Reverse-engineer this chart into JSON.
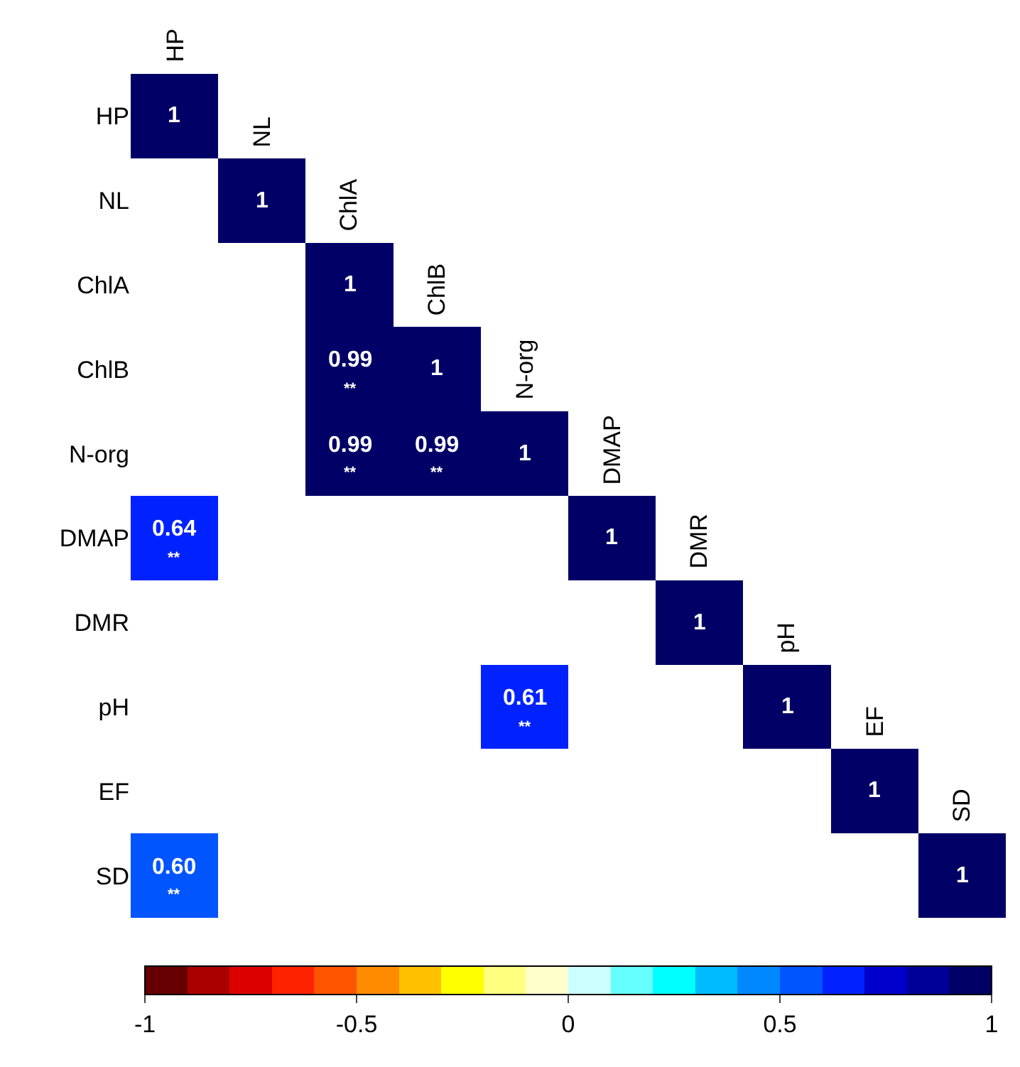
{
  "chart_data": {
    "type": "heatmap",
    "categories": [
      "HP",
      "NL",
      "ChlA",
      "ChlB",
      "N-org",
      "DMAP",
      "DMR",
      "pH",
      "EF",
      "SD"
    ],
    "y_categories": [
      "HP",
      "NL",
      "ChlA",
      "ChlB",
      "N-org",
      "DMAP",
      "DMR",
      "pH",
      "EF",
      "SD"
    ],
    "cells": [
      [
        1,
        null,
        null,
        null,
        null,
        null,
        null,
        null,
        null,
        null
      ],
      [
        null,
        1,
        null,
        null,
        null,
        null,
        null,
        null,
        null,
        null
      ],
      [
        null,
        null,
        1,
        null,
        null,
        null,
        null,
        null,
        null,
        null
      ],
      [
        null,
        null,
        0.99,
        1,
        null,
        null,
        null,
        null,
        null,
        null
      ],
      [
        null,
        null,
        0.99,
        0.99,
        1,
        null,
        null,
        null,
        null,
        null
      ],
      [
        0.64,
        null,
        null,
        null,
        null,
        1,
        null,
        null,
        null,
        null
      ],
      [
        null,
        null,
        null,
        null,
        null,
        null,
        1,
        null,
        null,
        null
      ],
      [
        null,
        null,
        null,
        null,
        0.61,
        null,
        null,
        1,
        null,
        null
      ],
      [
        null,
        null,
        null,
        null,
        null,
        null,
        null,
        null,
        1,
        null
      ],
      [
        0.6,
        null,
        null,
        null,
        null,
        null,
        null,
        null,
        null,
        1
      ]
    ],
    "cell_labels": [
      [
        "1",
        null,
        null,
        null,
        null,
        null,
        null,
        null,
        null,
        null
      ],
      [
        null,
        "1",
        null,
        null,
        null,
        null,
        null,
        null,
        null,
        null
      ],
      [
        null,
        null,
        "1",
        null,
        null,
        null,
        null,
        null,
        null,
        null
      ],
      [
        null,
        null,
        "0.99\n**",
        "1",
        null,
        null,
        null,
        null,
        null,
        null
      ],
      [
        null,
        null,
        "0.99\n**",
        "0.99\n**",
        "1",
        null,
        null,
        null,
        null,
        null
      ],
      [
        "0.64\n**",
        null,
        null,
        null,
        null,
        "1",
        null,
        null,
        null,
        null
      ],
      [
        null,
        null,
        null,
        null,
        null,
        null,
        "1",
        null,
        null,
        null
      ],
      [
        null,
        null,
        null,
        null,
        "0.61\n**",
        null,
        null,
        "1",
        null,
        null
      ],
      [
        null,
        null,
        null,
        null,
        null,
        null,
        null,
        null,
        "1",
        null
      ],
      [
        "0.60\n**",
        null,
        null,
        null,
        null,
        null,
        null,
        null,
        null,
        "1"
      ]
    ],
    "clim": [
      -1,
      1
    ],
    "cticks": [
      -1,
      -0.5,
      0,
      0.5,
      1
    ],
    "colors": [
      "#660000",
      "#aa0000",
      "#dd0000",
      "#ff2200",
      "#ff5500",
      "#ff8c00",
      "#ffc000",
      "#ffff00",
      "#ffff80",
      "#ffffcc",
      "#ccffff",
      "#66ffff",
      "#00ffff",
      "#00bbff",
      "#0088ff",
      "#0055ff",
      "#0022ff",
      "#0000cc",
      "#000099",
      "#000066"
    ]
  }
}
